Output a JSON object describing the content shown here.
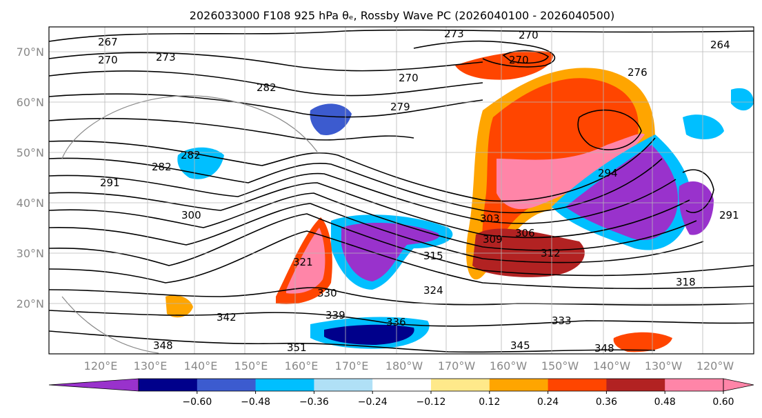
{
  "title": "2026033000 F108 925 hPa θₑ, Rossby Wave PC (2026040100 - 2026040500)",
  "map": {
    "lat_labels": [
      "70°N",
      "60°N",
      "50°N",
      "40°N",
      "30°N",
      "20°N"
    ],
    "lon_labels": [
      "120°E",
      "130°E",
      "140°E",
      "150°E",
      "160°E",
      "170°E",
      "180°W",
      "170°W",
      "160°W",
      "150°W",
      "140°W",
      "130°W",
      "120°W"
    ],
    "contour_labels": [
      "267",
      "273",
      "270",
      "273",
      "270",
      "270",
      "282",
      "279",
      "282",
      "282",
      "294",
      "291",
      "291",
      "300",
      "303",
      "306",
      "309",
      "312",
      "315",
      "321",
      "324",
      "330",
      "318",
      "339",
      "336",
      "333",
      "342",
      "348",
      "351",
      "345",
      "348",
      "264",
      "276",
      "270"
    ]
  },
  "colorbar": {
    "ticks": [
      "−0.60",
      "−0.48",
      "−0.36",
      "−0.24",
      "−0.12",
      "0.12",
      "0.24",
      "0.36",
      "0.48",
      "0.60"
    ],
    "colors": [
      "#9932cc",
      "#00008b",
      "#3c5bcf",
      "#00bfff",
      "#b0e0f6",
      "#ffffff",
      "#ffe98a",
      "#ffa500",
      "#ff4500",
      "#b22222",
      "#ff85a8",
      "#ff85a8"
    ]
  }
}
